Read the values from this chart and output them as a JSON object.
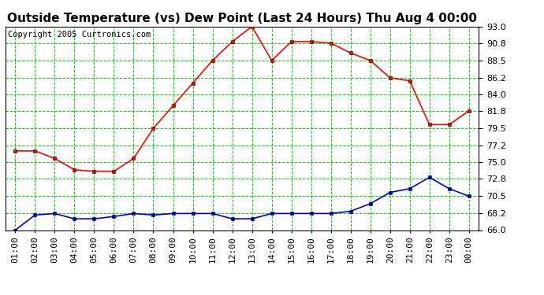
{
  "title": "Outside Temperature (vs) Dew Point (Last 24 Hours) Thu Aug 4 00:00",
  "copyright": "Copyright 2005 Curtronics.com",
  "x_labels": [
    "01:00",
    "02:00",
    "03:00",
    "04:00",
    "05:00",
    "06:00",
    "07:00",
    "08:00",
    "09:00",
    "10:00",
    "11:00",
    "12:00",
    "13:00",
    "14:00",
    "15:00",
    "16:00",
    "17:00",
    "18:00",
    "19:00",
    "20:00",
    "21:00",
    "22:00",
    "23:00",
    "00:00"
  ],
  "temp_data": [
    76.5,
    76.5,
    75.5,
    74.0,
    73.8,
    73.8,
    75.5,
    79.5,
    82.5,
    85.5,
    88.5,
    91.0,
    93.0,
    88.5,
    91.0,
    91.0,
    90.8,
    89.5,
    88.5,
    86.2,
    85.8,
    80.0,
    80.0,
    81.8
  ],
  "dew_data": [
    66.0,
    68.0,
    68.2,
    67.5,
    67.5,
    67.8,
    68.2,
    68.0,
    68.2,
    68.2,
    68.2,
    67.5,
    67.5,
    68.2,
    68.2,
    68.2,
    68.2,
    68.5,
    69.5,
    71.0,
    71.5,
    73.0,
    71.5,
    70.5
  ],
  "temp_color": "#ff0000",
  "dew_color": "#0000cc",
  "bg_color": "#ffffff",
  "plot_bg_color": "#ffffff",
  "grid_color": "#00dd00",
  "ylim": [
    66.0,
    93.0
  ],
  "yticks": [
    66.0,
    68.2,
    70.5,
    72.8,
    75.0,
    77.2,
    79.5,
    81.8,
    84.0,
    86.2,
    88.5,
    90.8,
    93.0
  ],
  "title_fontsize": 11,
  "tick_fontsize": 8,
  "copyright_fontsize": 7.5
}
